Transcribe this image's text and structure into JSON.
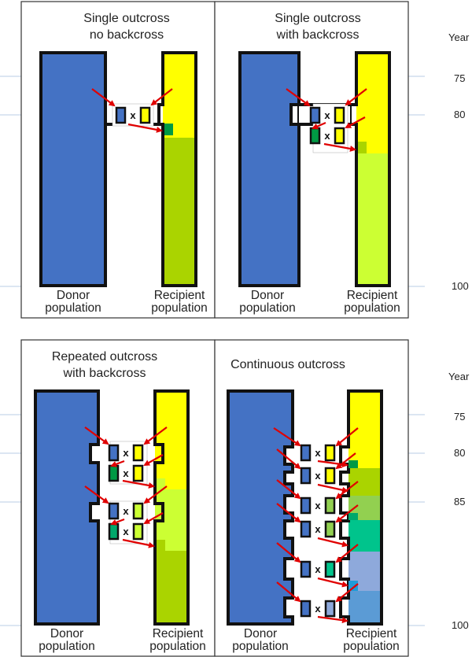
{
  "axis": {
    "label": "Year",
    "ticks": [
      "75",
      "80",
      "100",
      "75",
      "80",
      "85",
      "100"
    ]
  },
  "colors": {
    "donor": "#4472c4",
    "recipient": "#ffff00",
    "hybrid_1": "#aad400",
    "hybrid_2": "#ccff33",
    "backcross_hybrid": "#009944",
    "arrow": "#e00000",
    "outline": "#111111"
  },
  "panels": [
    {
      "id": "single-outcross-no-backcross",
      "title_lines": [
        "Single outcross",
        "no backcross"
      ],
      "donor_label": [
        "Donor",
        "population"
      ],
      "recipient_label": [
        "Recipient",
        "population"
      ],
      "cross_symbol": "x"
    },
    {
      "id": "single-outcross-with-backcross",
      "title_lines": [
        "Single outcross",
        "with backcross"
      ],
      "donor_label": [
        "Donor",
        "population"
      ],
      "recipient_label": [
        "Recipient",
        "population"
      ],
      "cross_symbol": "x"
    },
    {
      "id": "repeated-outcross-with-backcross",
      "title_lines": [
        "Repeated outcross",
        "with backcross"
      ],
      "donor_label": [
        "Donor",
        "population"
      ],
      "recipient_label": [
        "Recipient",
        "population"
      ],
      "cross_symbol": "x"
    },
    {
      "id": "continuous-outcross",
      "title_lines": [
        "Continuous outcross"
      ],
      "donor_label": [
        "Donor",
        "population"
      ],
      "recipient_label": [
        "Recipient",
        "population"
      ],
      "cross_symbol": "x"
    }
  ]
}
